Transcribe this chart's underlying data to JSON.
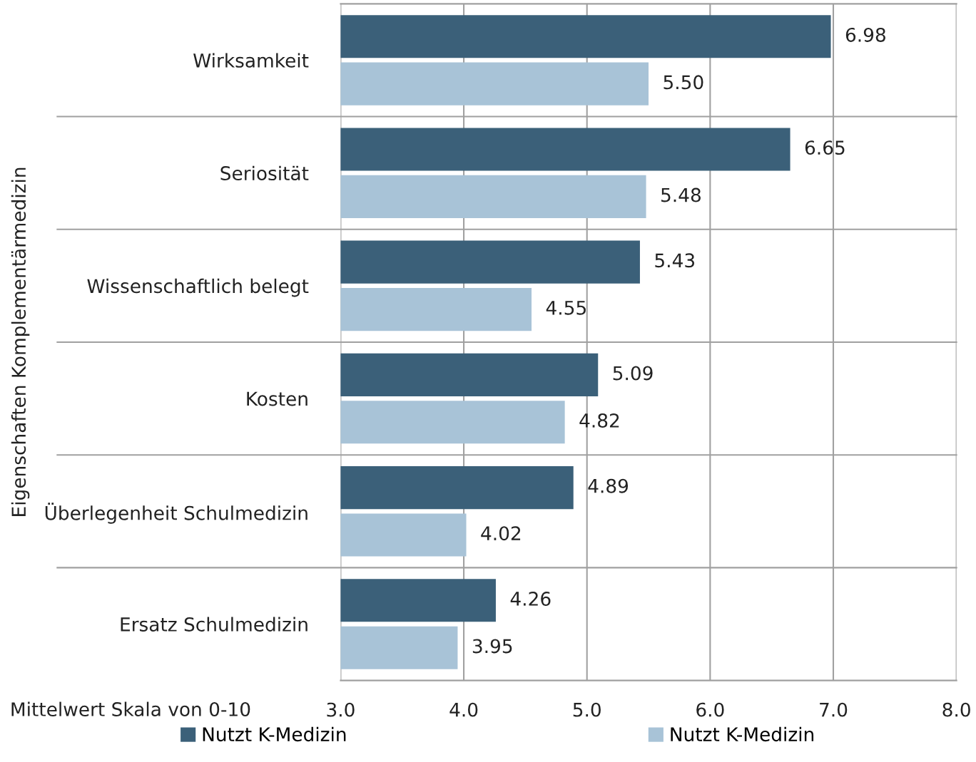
{
  "chart_data": {
    "type": "bar",
    "orientation": "horizontal",
    "categories": [
      "Wirksamkeit",
      "Seriosität",
      "Wissenschaftlich belegt",
      "Kosten",
      "Überlegenheit Schulmedizin",
      "Ersatz Schulmedizin"
    ],
    "series": [
      {
        "name": "Nutzt K-Medizin",
        "color": "#3b6079",
        "values": [
          6.98,
          6.65,
          5.43,
          5.09,
          4.89,
          4.26
        ],
        "value_labels": [
          "6.98",
          "6.65",
          "5.43",
          "5.09",
          "4.89",
          "4.26"
        ]
      },
      {
        "name": "Nutzt K-Medizin",
        "color": "#a8c3d7",
        "values": [
          5.5,
          5.48,
          4.55,
          4.82,
          4.02,
          3.95
        ],
        "value_labels": [
          "5.50",
          "5.48",
          "4.55",
          "4.82",
          "4.02",
          "3.95"
        ]
      }
    ],
    "xlim": [
      3,
      8
    ],
    "xticks": [
      {
        "value": 3,
        "label": "3.0"
      },
      {
        "value": 4,
        "label": "4.0"
      },
      {
        "value": 5,
        "label": "5.0"
      },
      {
        "value": 6,
        "label": "6.0"
      },
      {
        "value": 7,
        "label": "7.0"
      },
      {
        "value": 8,
        "label": "8.0"
      }
    ],
    "xlabel": "Mittelwert Skala von 0-10",
    "ylabel": "Eigenschaften Komplementärmedizin",
    "grid": true,
    "legend": "bottom"
  }
}
